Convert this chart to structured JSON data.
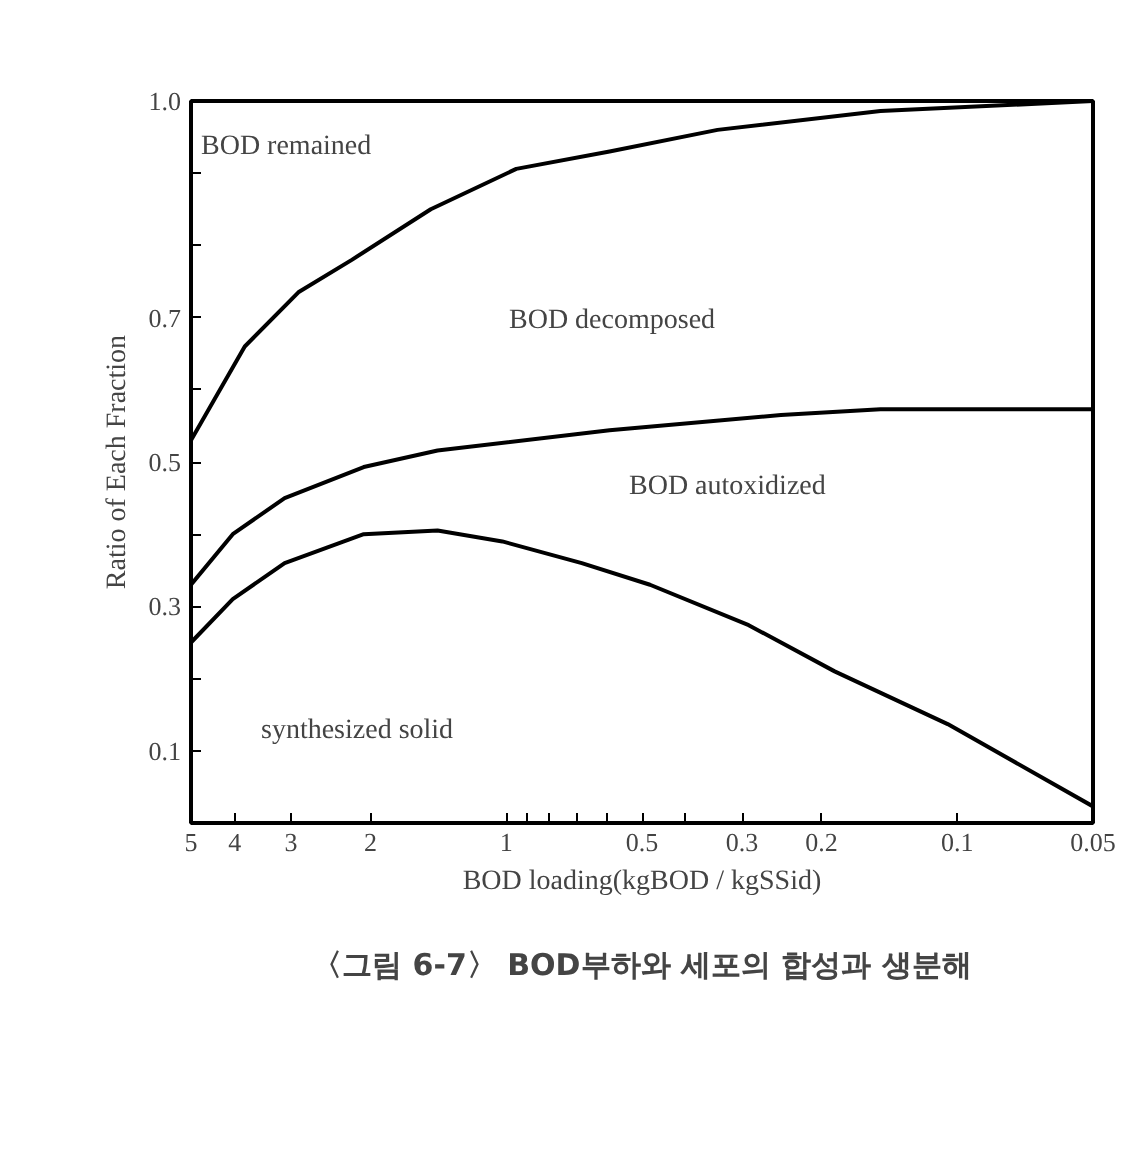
{
  "chart_data": {
    "type": "line",
    "xlabel": "BOD loading(kgBOD / kgSSid)",
    "ylabel": "Ratio of Each Fraction",
    "log": "x",
    "xlim": [
      5,
      0.05
    ],
    "ylim": [
      0,
      1.0
    ],
    "xticks": [
      5,
      4,
      3,
      2,
      1,
      {
        "value": 0.9,
        "label": null
      },
      {
        "value": 0.8,
        "label": null
      },
      {
        "value": 0.7,
        "label": null
      },
      {
        "value": 0.6,
        "label": null
      },
      0.5,
      {
        "value": 0.4,
        "label": null
      },
      0.3,
      0.2,
      0.1,
      0.05
    ],
    "yticks": [
      0.1,
      {
        "value": 0.2,
        "label": null
      },
      0.3,
      {
        "value": 0.4,
        "label": null
      },
      0.5,
      {
        "value": 0.6,
        "label": null
      },
      0.7,
      {
        "value": 0.8,
        "label": null
      },
      {
        "value": 0.9,
        "label": null
      },
      {
        "value": 1.0,
        "label": "1.0"
      }
    ],
    "grid": false,
    "marker": "none",
    "line_style": "solid",
    "series": [
      {
        "color": "#000000",
        "x": [
          5,
          3.8,
          2.89,
          2.2,
          1.47,
          0.95,
          0.59,
          0.34,
          0.148,
          0.05
        ],
        "values": [
          0.53,
          0.66,
          0.735,
          0.78,
          0.85,
          0.906,
          0.93,
          0.96,
          0.986,
          1.0
        ]
      },
      {
        "color": "#000000",
        "x": [
          5,
          4.04,
          3.1,
          2.07,
          1.42,
          0.59,
          0.246,
          0.148,
          0.05
        ],
        "values": [
          0.33,
          0.4,
          0.45,
          0.493,
          0.516,
          0.544,
          0.565,
          0.573,
          0.573
        ]
      },
      {
        "color": "#000000",
        "x": [
          5,
          4.04,
          3.1,
          2.07,
          1.42,
          1.02,
          0.68,
          0.48,
          0.29,
          0.187,
          0.105,
          0.05
        ],
        "values": [
          0.25,
          0.31,
          0.36,
          0.4,
          0.405,
          0.39,
          0.36,
          0.33,
          0.274,
          0.21,
          0.137,
          0.023
        ]
      }
    ],
    "annotations": [
      "BOD remained",
      "BOD decomposed",
      "BOD autoxidized",
      "synthesized solid",
      "〈그림 6-7〉 BOD부하와 세포의 합성과 생분해"
    ]
  }
}
